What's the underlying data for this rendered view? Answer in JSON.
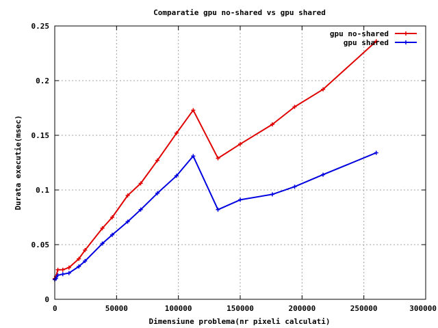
{
  "chart_data": {
    "type": "line",
    "title": "Comparatie gpu no-shared vs gpu shared",
    "xlabel": "Dimensiune problema(nr pixeli calculati)",
    "ylabel": "Durata executie(msec)",
    "xlim": [
      0,
      300000
    ],
    "ylim": [
      0,
      0.25
    ],
    "xticks": [
      0,
      50000,
      100000,
      150000,
      200000,
      250000,
      300000
    ],
    "xtick_labels": [
      "0",
      "50000",
      "100000",
      "150000",
      "200000",
      "250000",
      "300000"
    ],
    "yticks": [
      0,
      0.05,
      0.1,
      0.15,
      0.2,
      0.25
    ],
    "ytick_labels": [
      "0",
      "0.05",
      "0.1",
      "0.15",
      "0.2",
      "0.25"
    ],
    "grid": true,
    "legend_position": "top-right",
    "series": [
      {
        "name": "gpu no-shared",
        "color": "#e00000",
        "x": [
          0,
          1000,
          2500,
          6500,
          11500,
          19500,
          24500,
          38500,
          46500,
          59000,
          69500,
          83000,
          98500,
          112000,
          132000,
          150000,
          176000,
          194000,
          217000,
          260000
        ],
        "y": [
          0.019,
          0.021,
          0.027,
          0.027,
          0.029,
          0.037,
          0.045,
          0.065,
          0.075,
          0.095,
          0.106,
          0.127,
          0.152,
          0.173,
          0.129,
          0.142,
          0.16,
          0.176,
          0.192,
          0.236
        ]
      },
      {
        "name": "gpu shared",
        "color": "#0000e0",
        "x": [
          0,
          1000,
          2500,
          6500,
          11500,
          19500,
          24500,
          38500,
          46500,
          59000,
          69500,
          83000,
          98500,
          112000,
          132000,
          150000,
          176000,
          194000,
          217000,
          260000
        ],
        "y": [
          0.018,
          0.019,
          0.022,
          0.023,
          0.024,
          0.03,
          0.035,
          0.051,
          0.059,
          0.071,
          0.082,
          0.097,
          0.113,
          0.131,
          0.082,
          0.091,
          0.096,
          0.103,
          0.114,
          0.134
        ]
      }
    ]
  }
}
